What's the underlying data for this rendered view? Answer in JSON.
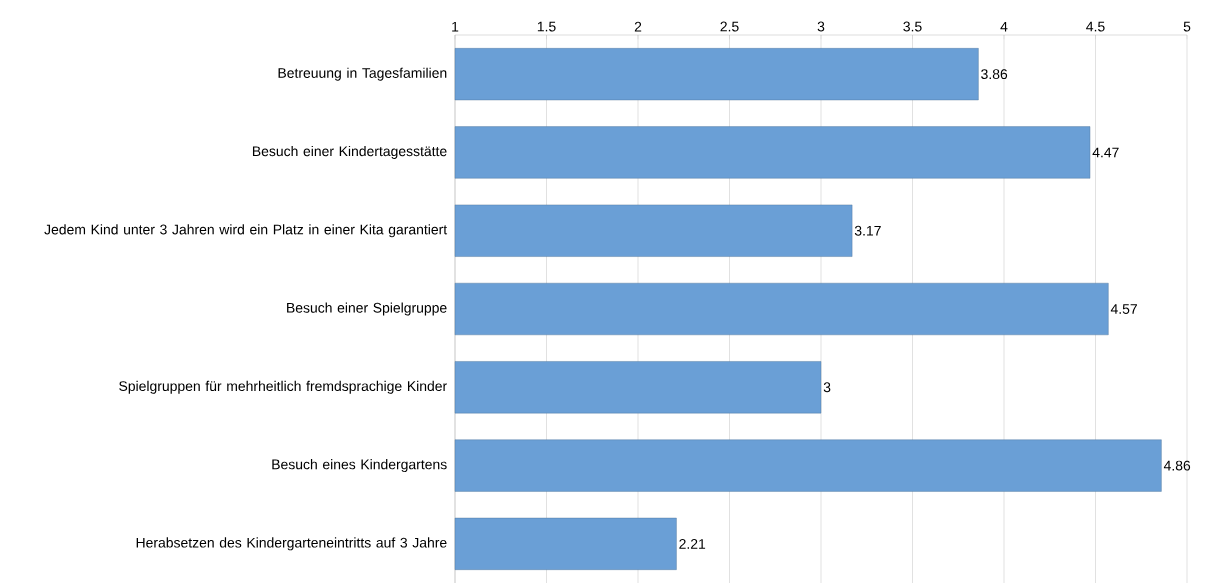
{
  "chart_data": {
    "type": "bar",
    "orientation": "horizontal",
    "categories": [
      "Betreuung in Tagesfamilien",
      "Besuch einer Kindertagesstätte",
      "Jedem Kind unter 3 Jahren wird ein Platz in einer Kita garantiert",
      "Besuch einer Spielgruppe",
      "Spielgruppen für mehrheitlich fremdsprachige Kinder",
      "Besuch eines Kindergartens",
      "Herabsetzen des Kindergarteneintritts auf 3 Jahre"
    ],
    "values": [
      3.86,
      4.47,
      3.17,
      4.57,
      3,
      4.86,
      2.21
    ],
    "color": "#6a9fd6",
    "xlim": [
      1,
      5
    ],
    "xticks": [
      1,
      1.5,
      2,
      2.5,
      3,
      3.5,
      4,
      4.5,
      5
    ],
    "grid": "x",
    "data_labels": true
  }
}
